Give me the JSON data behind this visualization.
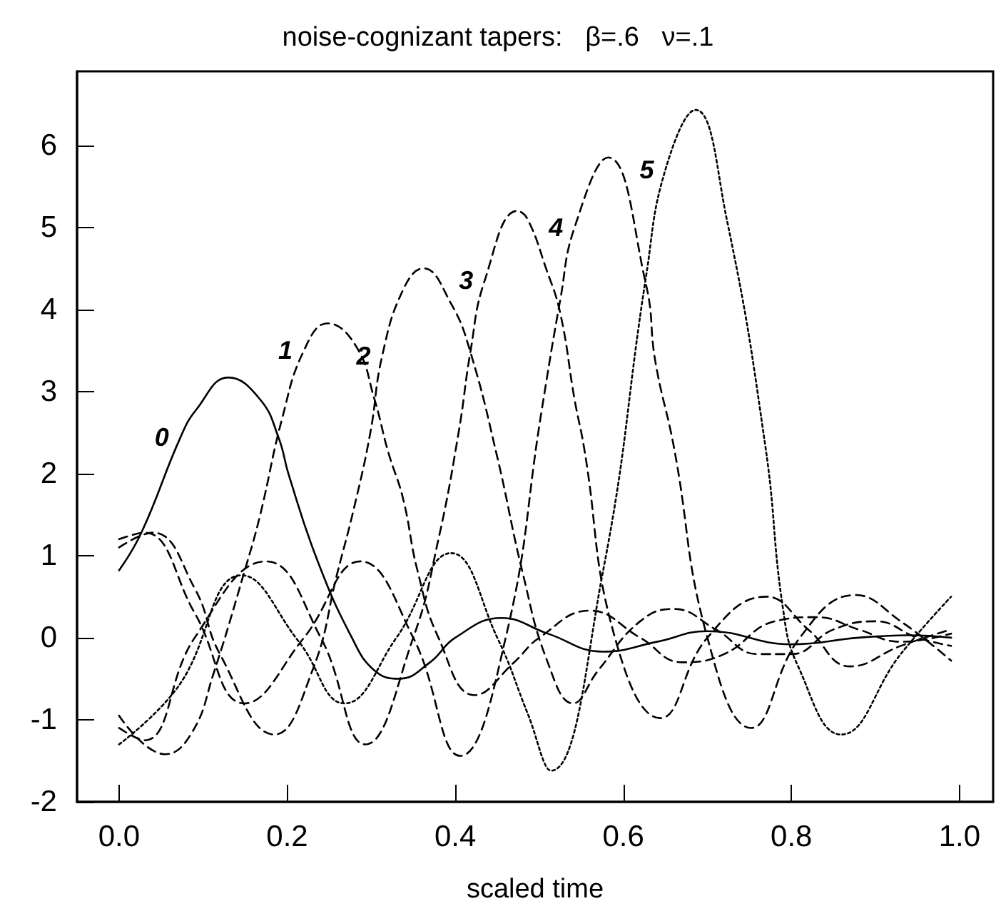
{
  "chart_data": {
    "type": "line",
    "title": "noise-cognizant tapers:   β=.6   ν=.1",
    "xlabel": "scaled time",
    "xlim": [
      -0.05,
      1.04
    ],
    "ylim": [
      -2,
      6.9
    ],
    "xticks": [
      {
        "value": 0,
        "label": "0.0"
      },
      {
        "value": 0.2,
        "label": "0.2"
      },
      {
        "value": 0.4,
        "label": "0.4"
      },
      {
        "value": 0.6,
        "label": "0.6"
      },
      {
        "value": 0.8,
        "label": "0.8"
      },
      {
        "value": 1,
        "label": "1.0"
      }
    ],
    "yticks": [
      -2,
      -1,
      0,
      1,
      2,
      3,
      4,
      5,
      6
    ],
    "grid": false,
    "legend": false,
    "marker": "none",
    "series": [
      {
        "name": "0",
        "color": "#000000",
        "line_style": "solid",
        "x": [
          0,
          0.027,
          0.073,
          0.092,
          0.13,
          0.168,
          0.19,
          0.202,
          0.236,
          0.277,
          0.304,
          0.333,
          0.37,
          0.4,
          0.455,
          0.51,
          0.576,
          0.64,
          0.7,
          0.8,
          0.88,
          0.94,
          0.99
        ],
        "values": [
          0.82,
          1.29,
          2.44,
          2.78,
          3.17,
          2.9,
          2.43,
          1.98,
          0.94,
          0,
          -0.4,
          -0.5,
          -0.3,
          0,
          0.24,
          0.05,
          -0.17,
          -0.05,
          0.08,
          -0.08,
          0,
          0.03,
          0
        ]
      },
      {
        "name": "1",
        "color": "#000000",
        "line_style": "dashed",
        "x": [
          0,
          0.055,
          0.087,
          0.112,
          0.151,
          0.168,
          0.194,
          0.22,
          0.248,
          0.282,
          0.304,
          0.32,
          0.338,
          0.355,
          0.38,
          0.423,
          0.47,
          0.5,
          0.56,
          0.62,
          0.67,
          0.72,
          0.78,
          0.83,
          0.88,
          0.93,
          0.99
        ],
        "values": [
          -0.95,
          -1.42,
          -1.15,
          -0.45,
          0.87,
          1.5,
          2.67,
          3.5,
          3.83,
          3.55,
          2.9,
          2.27,
          1.69,
          0.82,
          0,
          -0.7,
          -0.3,
          0,
          0.33,
          0,
          -0.3,
          -0.2,
          0.2,
          0.25,
          0.1,
          -0.05,
          0.05
        ]
      },
      {
        "name": "2",
        "color": "#000000",
        "line_style": "dashed",
        "x": [
          0,
          0.04,
          0.09,
          0.12,
          0.185,
          0.23,
          0.26,
          0.28,
          0.299,
          0.313,
          0.338,
          0.362,
          0.395,
          0.418,
          0.45,
          0.48,
          0.51,
          0.54,
          0.57,
          0.62,
          0.66,
          0.71,
          0.76,
          0.8,
          0.85,
          0.9,
          0.95,
          0.99
        ],
        "values": [
          1.1,
          1.28,
          0.6,
          -0.2,
          -1.18,
          -0.4,
          0.8,
          1.6,
          2.5,
          3.43,
          4.24,
          4.5,
          4.07,
          3.48,
          2.2,
          0.8,
          -0.3,
          -0.8,
          -0.4,
          0.2,
          0.35,
          0.1,
          -0.2,
          -0.2,
          0.1,
          0.2,
          0,
          -0.1
        ]
      },
      {
        "name": "3",
        "color": "#000000",
        "line_style": "dashed",
        "x": [
          0,
          0.03,
          0.09,
          0.175,
          0.24,
          0.293,
          0.35,
          0.38,
          0.404,
          0.418,
          0.435,
          0.474,
          0.486,
          0.508,
          0.525,
          0.542,
          0.553,
          0.59,
          0.644,
          0.7,
          0.77,
          0.82,
          0.87,
          0.93,
          0.99
        ],
        "values": [
          -1.1,
          -1.25,
          0,
          0.93,
          0,
          -1.3,
          0,
          1.2,
          2.5,
          3.48,
          4.35,
          5.2,
          5.1,
          4.5,
          3.95,
          2.9,
          2.33,
          0,
          -0.98,
          0,
          0.5,
          0.1,
          -0.35,
          -0.1,
          0.1
        ]
      },
      {
        "name": "4",
        "color": "#000000",
        "line_style": "dashed",
        "x": [
          0,
          0.03,
          0.09,
          0.149,
          0.22,
          0.287,
          0.35,
          0.406,
          0.46,
          0.503,
          0.525,
          0.542,
          0.582,
          0.627,
          0.638,
          0.66,
          0.7,
          0.752,
          0.81,
          0.876,
          0.93,
          0.99
        ],
        "values": [
          1.2,
          1.28,
          0.3,
          -0.8,
          0,
          0.93,
          0,
          -1.44,
          0,
          2.78,
          4.12,
          5,
          5.85,
          4.3,
          3.37,
          2.33,
          0,
          -1.1,
          0,
          0.52,
          0.2,
          -0.28
        ]
      },
      {
        "name": "5",
        "color": "#000000",
        "line_style": "dotted",
        "x": [
          0,
          0.07,
          0.146,
          0.214,
          0.268,
          0.33,
          0.395,
          0.45,
          0.486,
          0.514,
          0.576,
          0.627,
          0.65,
          0.686,
          0.723,
          0.769,
          0.79,
          0.808,
          0.859,
          0.93,
          0.99
        ],
        "values": [
          -1.3,
          -0.6,
          0.76,
          -0.05,
          -0.8,
          0,
          1.03,
          0,
          -0.92,
          -1.62,
          0.82,
          4.4,
          5.7,
          6.43,
          5.1,
          2.33,
          0.35,
          -0.35,
          -1.18,
          -0.2,
          0.5
        ]
      }
    ]
  }
}
